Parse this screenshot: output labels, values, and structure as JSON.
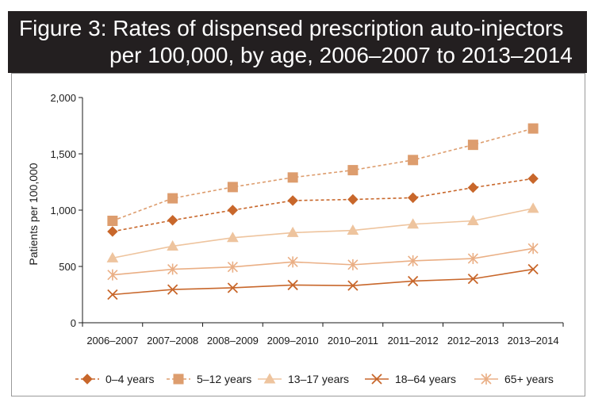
{
  "title": {
    "line1": "Figure 3: Rates of dispensed prescription auto-injectors",
    "line2": "per 100,000, by age, 2006–2007 to 2013–2014"
  },
  "chart_data": {
    "type": "line",
    "title": "Figure 3: Rates of dispensed prescription auto-injectors per 100,000, by age, 2006–2007 to 2013–2014",
    "xlabel": "",
    "ylabel": "Patients per 100,000",
    "ylim": [
      0,
      2000
    ],
    "yticks": [
      0,
      500,
      1000,
      1500,
      2000
    ],
    "ytick_labels": [
      "0",
      "500",
      "1,000",
      "1,500",
      "2,000"
    ],
    "categories": [
      "2006–2007",
      "2007–2008",
      "2008–2009",
      "2009–2010",
      "2010–2011",
      "2011–2012",
      "2012–2013",
      "2013–2014"
    ],
    "grid": false,
    "legend_position": "bottom",
    "series": [
      {
        "name": "0–4 years",
        "values": [
          810,
          910,
          1000,
          1085,
          1095,
          1110,
          1200,
          1280
        ],
        "color": "#c8672b",
        "marker": "diamond",
        "dash": true
      },
      {
        "name": "5–12 years",
        "values": [
          905,
          1105,
          1205,
          1290,
          1355,
          1445,
          1580,
          1725
        ],
        "color": "#dd9d6e",
        "marker": "square",
        "dash": true
      },
      {
        "name": "13–17 years",
        "values": [
          575,
          680,
          755,
          800,
          820,
          875,
          905,
          1015
        ],
        "color": "#eec49e",
        "marker": "triangle",
        "dash": false
      },
      {
        "name": "18–64 years",
        "values": [
          250,
          295,
          310,
          335,
          330,
          370,
          390,
          475
        ],
        "color": "#c8672b",
        "marker": "x",
        "dash": false
      },
      {
        "name": "65+ years",
        "values": [
          425,
          475,
          495,
          540,
          515,
          550,
          570,
          660
        ],
        "color": "#eaaf85",
        "marker": "asterisk",
        "dash": false
      }
    ]
  }
}
